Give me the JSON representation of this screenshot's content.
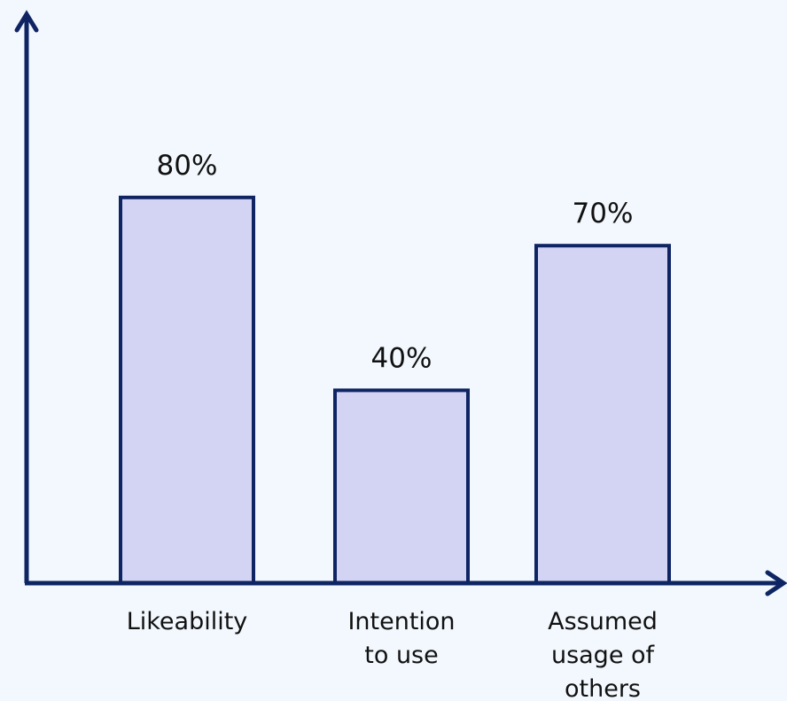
{
  "chart_data": {
    "type": "bar",
    "categories": [
      "Likeability",
      "Intention to use",
      "Assumed usage of others"
    ],
    "category_label_lines": [
      [
        "Likeability"
      ],
      [
        "Intention",
        "to use"
      ],
      [
        "Assumed",
        "usage of",
        "others"
      ]
    ],
    "values": [
      80,
      40,
      70
    ],
    "value_labels": [
      "80%",
      "40%",
      "70%"
    ],
    "unit": "%",
    "ylim": [
      0,
      100
    ],
    "grid": false,
    "legend": "none",
    "y_ticks_shown": false
  },
  "colors": {
    "background": "#f2f8fd",
    "bar_fill": "#d3d3f3",
    "bar_stroke": "#0f2463",
    "axis": "#0f2463",
    "text": "#111111"
  }
}
